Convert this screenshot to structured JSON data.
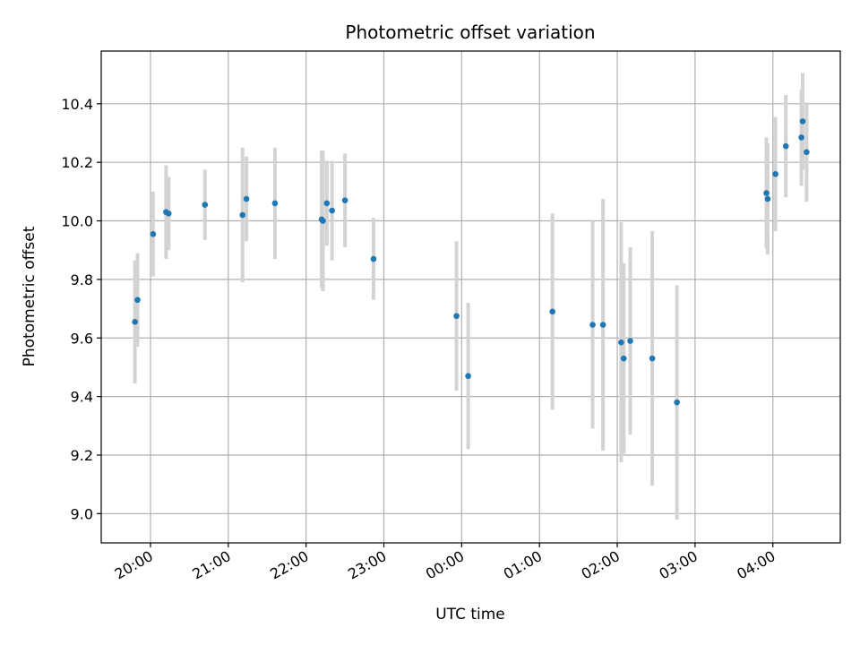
{
  "chart_data": {
    "type": "scatter",
    "title": "Photometric offset variation",
    "xlabel": "UTC time",
    "ylabel": "Photometric offset",
    "x_ticks": [
      "20:00",
      "21:00",
      "22:00",
      "23:00",
      "00:00",
      "01:00",
      "02:00",
      "03:00",
      "04:00"
    ],
    "y_ticks": [
      "9.0",
      "9.2",
      "9.4",
      "9.6",
      "9.8",
      "10.0",
      "10.2",
      "10.4"
    ],
    "xlim": [
      "19:22",
      "04:52"
    ],
    "ylim": [
      8.9,
      10.58
    ],
    "grid": true,
    "marker_color": "#1f77b4",
    "errorbar_color": "#d3d3d3",
    "series": [
      {
        "points": [
          {
            "x": "19:48",
            "y": 9.655,
            "err": 0.21
          },
          {
            "x": "19:50",
            "y": 9.73,
            "err": 0.16
          },
          {
            "x": "20:02",
            "y": 9.955,
            "err": 0.145
          },
          {
            "x": "20:12",
            "y": 10.03,
            "err": 0.16
          },
          {
            "x": "20:14",
            "y": 10.025,
            "err": 0.125
          },
          {
            "x": "20:42",
            "y": 10.055,
            "err": 0.12
          },
          {
            "x": "21:11",
            "y": 10.02,
            "err": 0.23
          },
          {
            "x": "21:14",
            "y": 10.075,
            "err": 0.145
          },
          {
            "x": "21:36",
            "y": 10.06,
            "err": 0.19
          },
          {
            "x": "22:12",
            "y": 10.005,
            "err": 0.235
          },
          {
            "x": "22:13",
            "y": 10.0,
            "err": 0.24
          },
          {
            "x": "22:16",
            "y": 10.06,
            "err": 0.145
          },
          {
            "x": "22:20",
            "y": 10.035,
            "err": 0.17
          },
          {
            "x": "22:30",
            "y": 10.07,
            "err": 0.16
          },
          {
            "x": "22:52",
            "y": 9.87,
            "err": 0.14
          },
          {
            "x": "23:56",
            "y": 9.675,
            "err": 0.255
          },
          {
            "x": "00:05",
            "y": 9.47,
            "err": 0.25
          },
          {
            "x": "01:10",
            "y": 9.69,
            "err": 0.335
          },
          {
            "x": "01:41",
            "y": 9.645,
            "err": 0.355
          },
          {
            "x": "01:49",
            "y": 9.645,
            "err": 0.43
          },
          {
            "x": "02:03",
            "y": 9.585,
            "err": 0.41
          },
          {
            "x": "02:05",
            "y": 9.53,
            "err": 0.325
          },
          {
            "x": "02:10",
            "y": 9.59,
            "err": 0.32
          },
          {
            "x": "02:27",
            "y": 9.53,
            "err": 0.435
          },
          {
            "x": "02:46",
            "y": 9.38,
            "err": 0.4
          },
          {
            "x": "03:55",
            "y": 10.095,
            "err": 0.19
          },
          {
            "x": "03:56",
            "y": 10.075,
            "err": 0.19
          },
          {
            "x": "04:02",
            "y": 10.16,
            "err": 0.195
          },
          {
            "x": "04:10",
            "y": 10.255,
            "err": 0.175
          },
          {
            "x": "04:22",
            "y": 10.285,
            "err": 0.165
          },
          {
            "x": "04:23",
            "y": 10.34,
            "err": 0.165
          },
          {
            "x": "04:26",
            "y": 10.235,
            "err": 0.17
          }
        ]
      }
    ]
  }
}
